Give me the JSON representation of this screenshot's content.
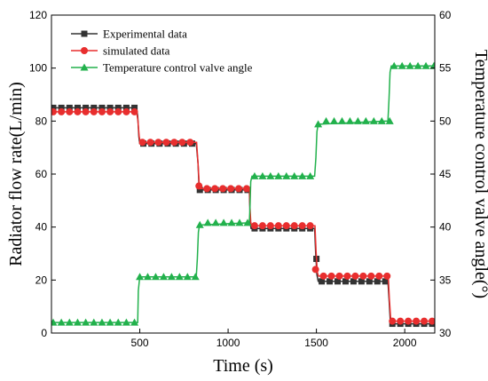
{
  "chart_data": {
    "type": "line",
    "xlabel": "Time (s)",
    "ylabel_left": "Radiator flow rate(L/min)",
    "ylabel_right": "Temperature control valve angle(°)",
    "xlim": [
      0,
      2170
    ],
    "ylim_left": [
      0,
      120
    ],
    "ylim_right": [
      30,
      60
    ],
    "xticks": [
      "500",
      "1000",
      "1500",
      "2000"
    ],
    "yticks_left": [
      "0",
      "20",
      "40",
      "60",
      "80",
      "100",
      "120"
    ],
    "yticks_right": [
      "30",
      "35",
      "40",
      "45",
      "50",
      "55",
      "60"
    ],
    "legend_position": "top-left",
    "series": [
      {
        "name": "Experimental data",
        "axis": "left",
        "color": "#333333",
        "marker": "square",
        "marker_x": [
          10,
          56,
          102,
          148,
          194,
          240,
          286,
          332,
          378,
          424,
          470,
          520,
          566,
          612,
          658,
          704,
          750,
          796,
          840,
          885,
          930,
          975,
          1020,
          1065,
          1110,
          1150,
          1195,
          1240,
          1285,
          1330,
          1375,
          1420,
          1465,
          1500,
          1530,
          1575,
          1620,
          1665,
          1710,
          1755,
          1800,
          1845,
          1890,
          1930,
          1975,
          2020,
          2065,
          2110,
          2155
        ],
        "marker_y": [
          85,
          85,
          85,
          85,
          85,
          85,
          85,
          85,
          85,
          85,
          85,
          71.5,
          71.5,
          71.5,
          71.5,
          71.5,
          71.5,
          71.5,
          54,
          54,
          54,
          54,
          54,
          54,
          54,
          39.5,
          39.5,
          39.5,
          39.5,
          39.5,
          39.5,
          39.5,
          39.5,
          28,
          19.5,
          19.5,
          19.5,
          19.5,
          19.5,
          19.5,
          19.5,
          19.5,
          19.5,
          3.5,
          3.5,
          3.5,
          3.5,
          3.5,
          3.5
        ],
        "line_x": [
          0,
          480,
          488,
          495,
          500,
          820,
          830,
          835,
          840,
          1120,
          1123,
          1126,
          1130,
          1490,
          1496,
          1503,
          1510,
          1905,
          1912,
          1918,
          1925,
          2170
        ],
        "line_y": [
          85,
          85,
          82,
          74,
          71.5,
          71.5,
          64,
          56,
          54,
          54,
          47,
          41,
          39.5,
          39.5,
          30,
          22,
          19.5,
          19.5,
          12,
          5,
          3.5,
          3.5
        ]
      },
      {
        "name": "simulated data",
        "axis": "left",
        "color": "#e82e2e",
        "marker": "circle",
        "marker_x": [
          10,
          56,
          102,
          148,
          194,
          240,
          286,
          332,
          378,
          424,
          470,
          515,
          560,
          605,
          650,
          695,
          740,
          785,
          835,
          880,
          925,
          970,
          1015,
          1060,
          1105,
          1150,
          1195,
          1240,
          1285,
          1330,
          1375,
          1420,
          1465,
          1495,
          1540,
          1585,
          1630,
          1675,
          1720,
          1765,
          1810,
          1855,
          1900,
          1930,
          1975,
          2020,
          2065,
          2110,
          2155
        ],
        "marker_y": [
          83.5,
          83.5,
          83.5,
          83.5,
          83.5,
          83.5,
          83.5,
          83.5,
          83.5,
          83.5,
          83.5,
          72,
          72,
          72,
          72,
          72,
          72,
          72,
          55.5,
          54.5,
          54.5,
          54.5,
          54.5,
          54.5,
          54.5,
          40.5,
          40.5,
          40.5,
          40.5,
          40.5,
          40.5,
          40.5,
          40.5,
          24,
          21.5,
          21.5,
          21.5,
          21.5,
          21.5,
          21.5,
          21.5,
          21.5,
          21.5,
          4.5,
          4.5,
          4.5,
          4.5,
          4.5,
          4.5
        ],
        "line_x": [
          0,
          482,
          490,
          497,
          503,
          822,
          830,
          836,
          842,
          1120,
          1124,
          1128,
          1132,
          1492,
          1498,
          1505,
          1512,
          1907,
          1913,
          1920,
          1927,
          2170
        ],
        "line_y": [
          83.5,
          83.5,
          80,
          74,
          72,
          72,
          64,
          57,
          54.5,
          54.5,
          47,
          42,
          40.5,
          40.5,
          31,
          23,
          21.5,
          21.5,
          13,
          6,
          4.5,
          4.5
        ]
      },
      {
        "name": "Temperature control valve angle",
        "axis": "right",
        "color": "#22b14c",
        "marker": "triangle",
        "marker_x": [
          10,
          56,
          102,
          148,
          194,
          240,
          286,
          332,
          378,
          424,
          470,
          500,
          545,
          590,
          635,
          680,
          725,
          770,
          815,
          840,
          885,
          930,
          975,
          1020,
          1065,
          1110,
          1150,
          1195,
          1240,
          1285,
          1330,
          1375,
          1420,
          1465,
          1510,
          1555,
          1600,
          1645,
          1690,
          1735,
          1780,
          1825,
          1870,
          1915,
          1940,
          1985,
          2030,
          2075,
          2120,
          2165
        ],
        "marker_y": [
          31,
          31,
          31,
          31,
          31,
          31,
          31,
          31,
          31,
          31,
          31,
          35.3,
          35.3,
          35.3,
          35.3,
          35.3,
          35.3,
          35.3,
          35.3,
          40.2,
          40.4,
          40.4,
          40.4,
          40.4,
          40.4,
          40.4,
          44.8,
          44.8,
          44.8,
          44.8,
          44.8,
          44.8,
          44.8,
          44.8,
          49.7,
          50,
          50,
          50,
          50,
          50,
          50,
          50,
          50,
          50,
          55.2,
          55.2,
          55.2,
          55.2,
          55.2,
          55.2
        ],
        "line_x": [
          0,
          488,
          492,
          500,
          820,
          826,
          832,
          838,
          1120,
          1124,
          1128,
          1135,
          1490,
          1497,
          1503,
          1510,
          1905,
          1911,
          1917,
          1924,
          2170
        ],
        "line_y": [
          31,
          31,
          34,
          35.3,
          35.3,
          37,
          39.5,
          40.2,
          40.4,
          42,
          44.3,
          44.8,
          44.8,
          46.5,
          49,
          49.7,
          50,
          52,
          54.6,
          55.2,
          55.2
        ]
      }
    ]
  }
}
